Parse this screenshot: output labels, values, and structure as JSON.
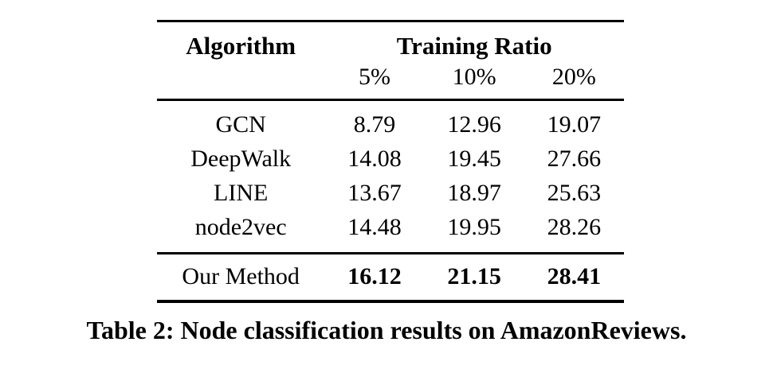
{
  "table": {
    "header": {
      "algorithm_label": "Algorithm",
      "group_label": "Training Ratio",
      "ratio_columns": [
        "5%",
        "10%",
        "20%"
      ]
    },
    "rows": [
      {
        "algorithm": "GCN",
        "values": [
          "8.79",
          "12.96",
          "19.07"
        ]
      },
      {
        "algorithm": "DeepWalk",
        "values": [
          "14.08",
          "19.45",
          "27.66"
        ]
      },
      {
        "algorithm": "LINE",
        "values": [
          "13.67",
          "18.97",
          "25.63"
        ]
      },
      {
        "algorithm": "node2vec",
        "values": [
          "14.48",
          "19.95",
          "28.26"
        ]
      }
    ],
    "highlight_row": {
      "algorithm": "Our Method",
      "values": [
        "16.12",
        "21.15",
        "28.41"
      ]
    }
  },
  "caption": "Table 2: Node classification results on AmazonReviews.",
  "colors": {
    "text": "#000000",
    "background": "#ffffff",
    "rule": "#000000"
  }
}
